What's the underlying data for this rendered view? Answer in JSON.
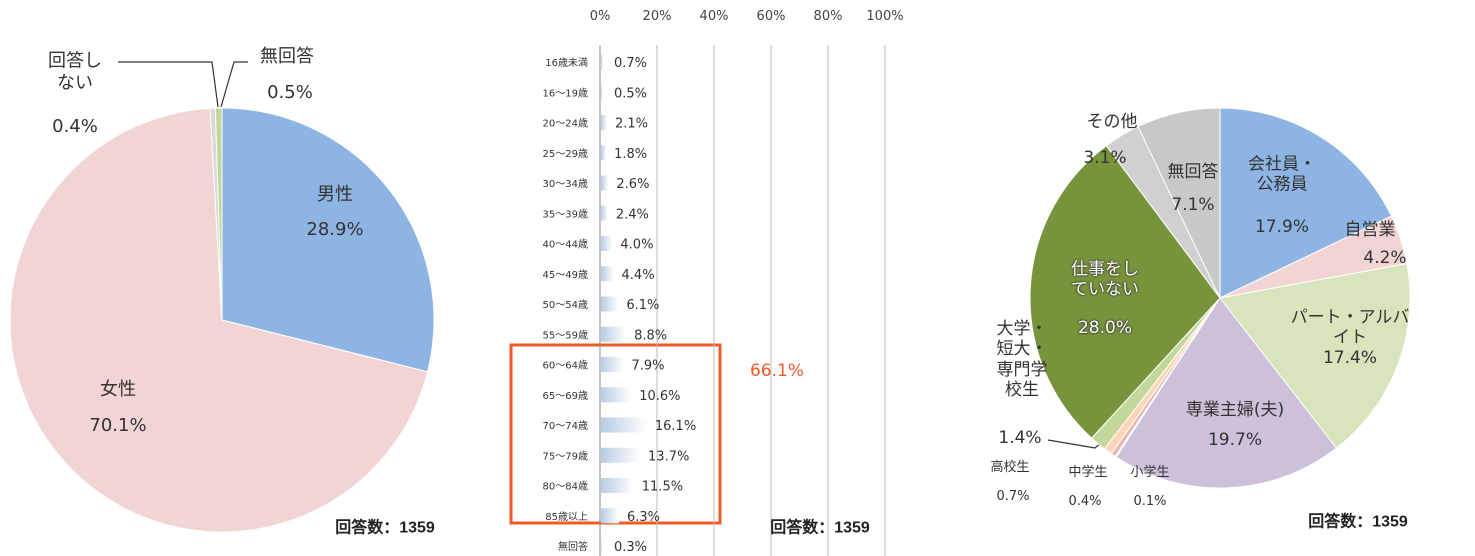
{
  "chart_data": [
    {
      "type": "pie",
      "categories": [
        "男性",
        "女性",
        "回答し\nない",
        "無回答"
      ],
      "values": [
        28.9,
        70.1,
        0.4,
        0.5
      ],
      "value_labels": [
        "28.9%",
        "70.1%",
        "0.4%",
        "0.5%"
      ],
      "colors": [
        "#8db4e2",
        "#f2d4d4",
        "#d9d9d9",
        "#c4d79b"
      ],
      "note": "回答数：1359"
    },
    {
      "type": "bar",
      "categories": [
        "16歳未満",
        "16～19歳",
        "20～24歳",
        "25～29歳",
        "30～34歳",
        "35～39歳",
        "40～44歳",
        "45～49歳",
        "50～54歳",
        "55～59歳",
        "60～64歳",
        "65～69歳",
        "70～74歳",
        "75～79歳",
        "80～84歳",
        "85歳以上",
        "無回答"
      ],
      "values": [
        0.7,
        0.5,
        2.1,
        1.8,
        2.6,
        2.4,
        4.0,
        4.4,
        6.1,
        8.8,
        7.9,
        10.6,
        16.1,
        13.7,
        11.5,
        6.3,
        0.3
      ],
      "value_labels": [
        "0.7%",
        "0.5%",
        "2.1%",
        "1.8%",
        "2.6%",
        "2.4%",
        "4.0%",
        "4.4%",
        "6.1%",
        "8.8%",
        "7.9%",
        "10.6%",
        "16.1%",
        "13.7%",
        "11.5%",
        "6.3%",
        "0.3%"
      ],
      "color": "#b8cce4",
      "xlim": [
        0,
        100
      ],
      "xticks": [
        {
          "value": 0,
          "label": "0%"
        },
        {
          "value": 20,
          "label": "20%"
        },
        {
          "value": 40,
          "label": "40%"
        },
        {
          "value": 60,
          "label": "60%"
        },
        {
          "value": 80,
          "label": "80%"
        },
        {
          "value": 100,
          "label": "100%"
        }
      ],
      "grid": true,
      "annotation": "66.1%",
      "note": "回答数：1359"
    },
    {
      "type": "pie",
      "categories": [
        "会社員・\n公務員",
        "自営業",
        "パート・アルバイト",
        "専業主婦(夫)",
        "小学生",
        "中学生",
        "高校生",
        "大学・\n短大・\n専門学\n校生",
        "仕事をし\nていない",
        "その他",
        "無回答"
      ],
      "values": [
        17.9,
        4.2,
        17.4,
        19.7,
        0.1,
        0.4,
        0.7,
        1.4,
        28.0,
        3.1,
        7.1
      ],
      "value_labels": [
        "17.9%",
        "4.2%",
        "17.4%",
        "19.7%",
        "0.1%",
        "0.4%",
        "0.7%",
        "1.4%",
        "28.0%",
        "3.1%",
        "7.1%"
      ],
      "colors": [
        "#8db4e2",
        "#f2d4d4",
        "#d8e4bc",
        "#ccc0da",
        "#f2dcdb",
        "#e6b9b8",
        "#fcd5b4",
        "#c4d79b",
        "#77933c",
        "#d0d0d0",
        "#c8c8c8"
      ],
      "note": "回答数：1359"
    }
  ]
}
